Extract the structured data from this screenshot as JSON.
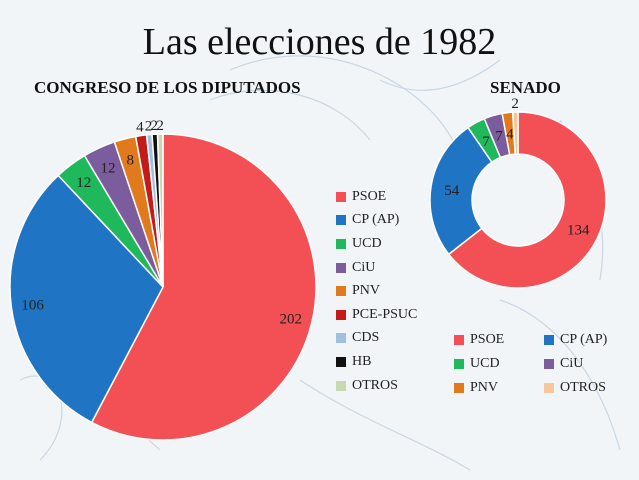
{
  "title": "Las elecciones de 1982",
  "colors": {
    "PSOE": "#f25054",
    "CP (AP)": "#1f74c4",
    "UCD": "#1fb85a",
    "CiU": "#7b5c9c",
    "PNV": "#e07a1c",
    "PCE-PSUC": "#c41a1a",
    "CDS": "#9fc0e0",
    "HB": "#111111",
    "OTROS": "#c8d8b0",
    "OTROS_senado": "#f7c79c"
  },
  "chart_data": [
    {
      "type": "pie",
      "title": "CONGRESO DE LOS DIPUTADOS",
      "categories": [
        "PSOE",
        "CP (AP)",
        "UCD",
        "CiU",
        "PNV",
        "PCE-PSUC",
        "CDS",
        "HB",
        "OTROS"
      ],
      "values": [
        202,
        106,
        12,
        12,
        8,
        4,
        2,
        2,
        2
      ],
      "labels": [
        "202",
        "106",
        "12",
        "12",
        "8",
        "4",
        "2",
        "2",
        "2"
      ],
      "legend": "right"
    },
    {
      "type": "pie",
      "title": "SENADO",
      "categories": [
        "PSOE",
        "CP (AP)",
        "UCD",
        "CiU",
        "PNV",
        "OTROS"
      ],
      "values": [
        134,
        54,
        7,
        7,
        4,
        2
      ],
      "labels": [
        "134",
        "54",
        "7",
        "7",
        "4",
        "2"
      ],
      "legend": "bottom"
    }
  ]
}
